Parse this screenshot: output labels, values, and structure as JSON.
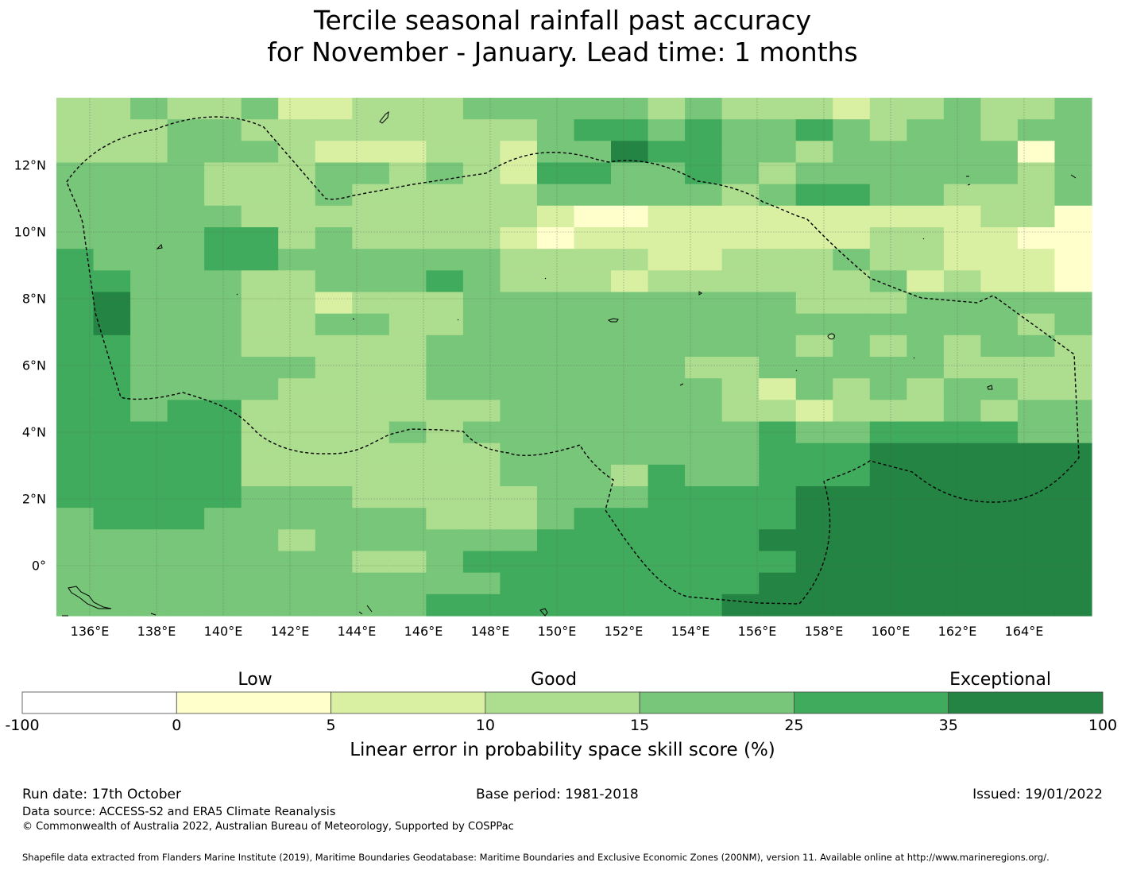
{
  "title": {
    "line1": "Tercile seasonal rainfall past accuracy",
    "line2": "for November - January. Lead time: 1 months"
  },
  "map": {
    "x_ticks": [
      "136°E",
      "138°E",
      "140°E",
      "142°E",
      "144°E",
      "146°E",
      "148°E",
      "150°E",
      "152°E",
      "154°E",
      "156°E",
      "158°E",
      "160°E",
      "162°E",
      "164°E"
    ],
    "y_ticks": [
      "12°N",
      "10°N",
      "8°N",
      "6°N",
      "4°N",
      "2°N",
      "0°"
    ],
    "grid_rows": [
      "3343342233344444343332334334",
      "3334433333333455454454344344",
      "3334443222332446554434444414",
      "4444333443432554454344444434",
      "4444333433333444443455443334",
      "4444433333333211222222222331",
      "4444553433332122222222332211",
      "5444554444443333223334332221",
      "5544433444543332333333423221",
      "5644433233344444444433344444",
      "5644433443344444444444444434",
      "5544433333444444444434343443",
      "5544444333444444433444443333",
      "5544443333444444443243434433",
      "5545533333334444443323334344",
      "5555533334344444444544555544",
      "5555533333334444444555666666",
      "5555533333334443544555666666",
      "5555544433333444555566666666",
      "4555444444333455555566666666",
      "4444443444444555555666666666",
      "4444444433455555555566666666",
      "4444444444445555555666666666",
      "4444444444555555556666666666"
    ],
    "eez_line": "dashed"
  },
  "colorbar": {
    "category_labels": [
      "Low",
      "Good",
      "Exceptional"
    ],
    "ticks": [
      "-100",
      "0",
      "5",
      "10",
      "15",
      "25",
      "35",
      "100"
    ],
    "colors": [
      "#ffffff",
      "#ffffcc",
      "#d9f0a3",
      "#addd8e",
      "#78c679",
      "#41ab5d",
      "#238443"
    ],
    "label": "Linear error in probability space skill score (%)"
  },
  "footer": {
    "run_date": "Run date: 17th October",
    "base_period": "Base period: 1981-2018",
    "issued": "Issued: 19/01/2022",
    "data_source": "Data source: ACCESS-S2 and ERA5 Climate Reanalysis",
    "copyright": "© Commonwealth of Australia 2022, Australian Bureau of Meteorology, Supported by COSPPac",
    "shapefile": "Shapefile data extracted from Flanders Marine Institute (2019), Maritime Boundaries Geodatabase: Maritime Boundaries and Exclusive Economic Zones (200NM), version 11. Available online at http://www.marineregions.org/."
  }
}
